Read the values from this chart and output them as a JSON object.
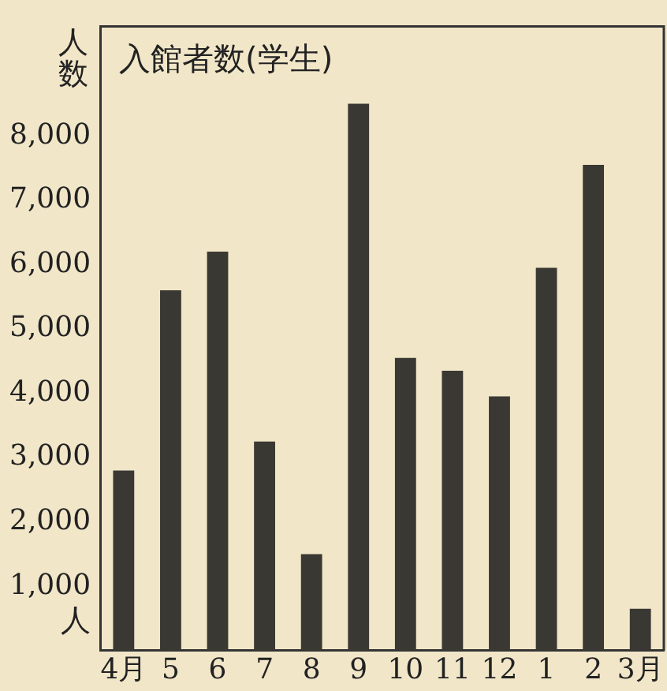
{
  "chart_data": {
    "type": "bar",
    "title": "入館者数(学生)",
    "ylabel": "人数",
    "annotations": [
      "人"
    ],
    "categories": [
      "4月",
      "5",
      "6",
      "7",
      "8",
      "9",
      "10",
      "11",
      "12",
      "1",
      "2",
      "3月"
    ],
    "values": [
      2800,
      5600,
      6200,
      3250,
      1500,
      8500,
      4550,
      4350,
      3950,
      5950,
      7550,
      650
    ],
    "color": "#3a3833",
    "ylim": [
      0,
      9700
    ],
    "yticks": [
      {
        "value": 1000,
        "label": "1,000"
      },
      {
        "value": 2000,
        "label": "2,000"
      },
      {
        "value": 3000,
        "label": "3,000"
      },
      {
        "value": 4000,
        "label": "4,000"
      },
      {
        "value": 5000,
        "label": "5,000"
      },
      {
        "value": 6000,
        "label": "6,000"
      },
      {
        "value": 7000,
        "label": "7,000"
      },
      {
        "value": 8000,
        "label": "8,000"
      }
    ],
    "grid": false,
    "legend": false
  }
}
